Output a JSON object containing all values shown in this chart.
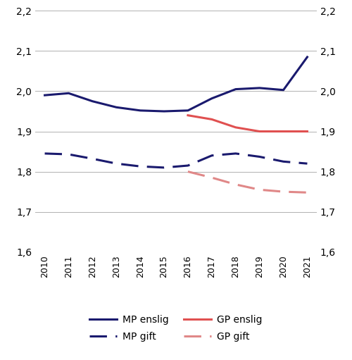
{
  "years": [
    2010,
    2011,
    2012,
    2013,
    2014,
    2015,
    2016,
    2017,
    2018,
    2019,
    2020,
    2021
  ],
  "MP_enslig": [
    1.99,
    1.995,
    1.975,
    1.96,
    1.952,
    1.95,
    1.952,
    1.982,
    2.005,
    2.008,
    2.003,
    2.085
  ],
  "MP_gift": [
    1.845,
    1.843,
    1.832,
    1.82,
    1.813,
    1.81,
    1.815,
    1.84,
    1.845,
    1.837,
    1.825,
    1.82
  ],
  "GP_enslig": [
    null,
    null,
    null,
    null,
    null,
    null,
    1.94,
    1.93,
    1.91,
    1.9,
    1.9,
    1.9
  ],
  "GP_gift": [
    null,
    null,
    null,
    null,
    null,
    null,
    1.8,
    1.785,
    1.768,
    1.755,
    1.75,
    1.748
  ],
  "ylim": [
    1.6,
    2.2
  ],
  "yticks": [
    1.6,
    1.7,
    1.8,
    1.9,
    2.0,
    2.1,
    2.2
  ],
  "MP_enslig_color": "#1a1a6e",
  "MP_gift_color": "#1a1a6e",
  "GP_enslig_color": "#e05050",
  "GP_gift_color": "#e08888",
  "background_color": "#ffffff",
  "grid_color": "#b0b0b0",
  "figsize": [
    5.0,
    5.11
  ],
  "dpi": 100
}
